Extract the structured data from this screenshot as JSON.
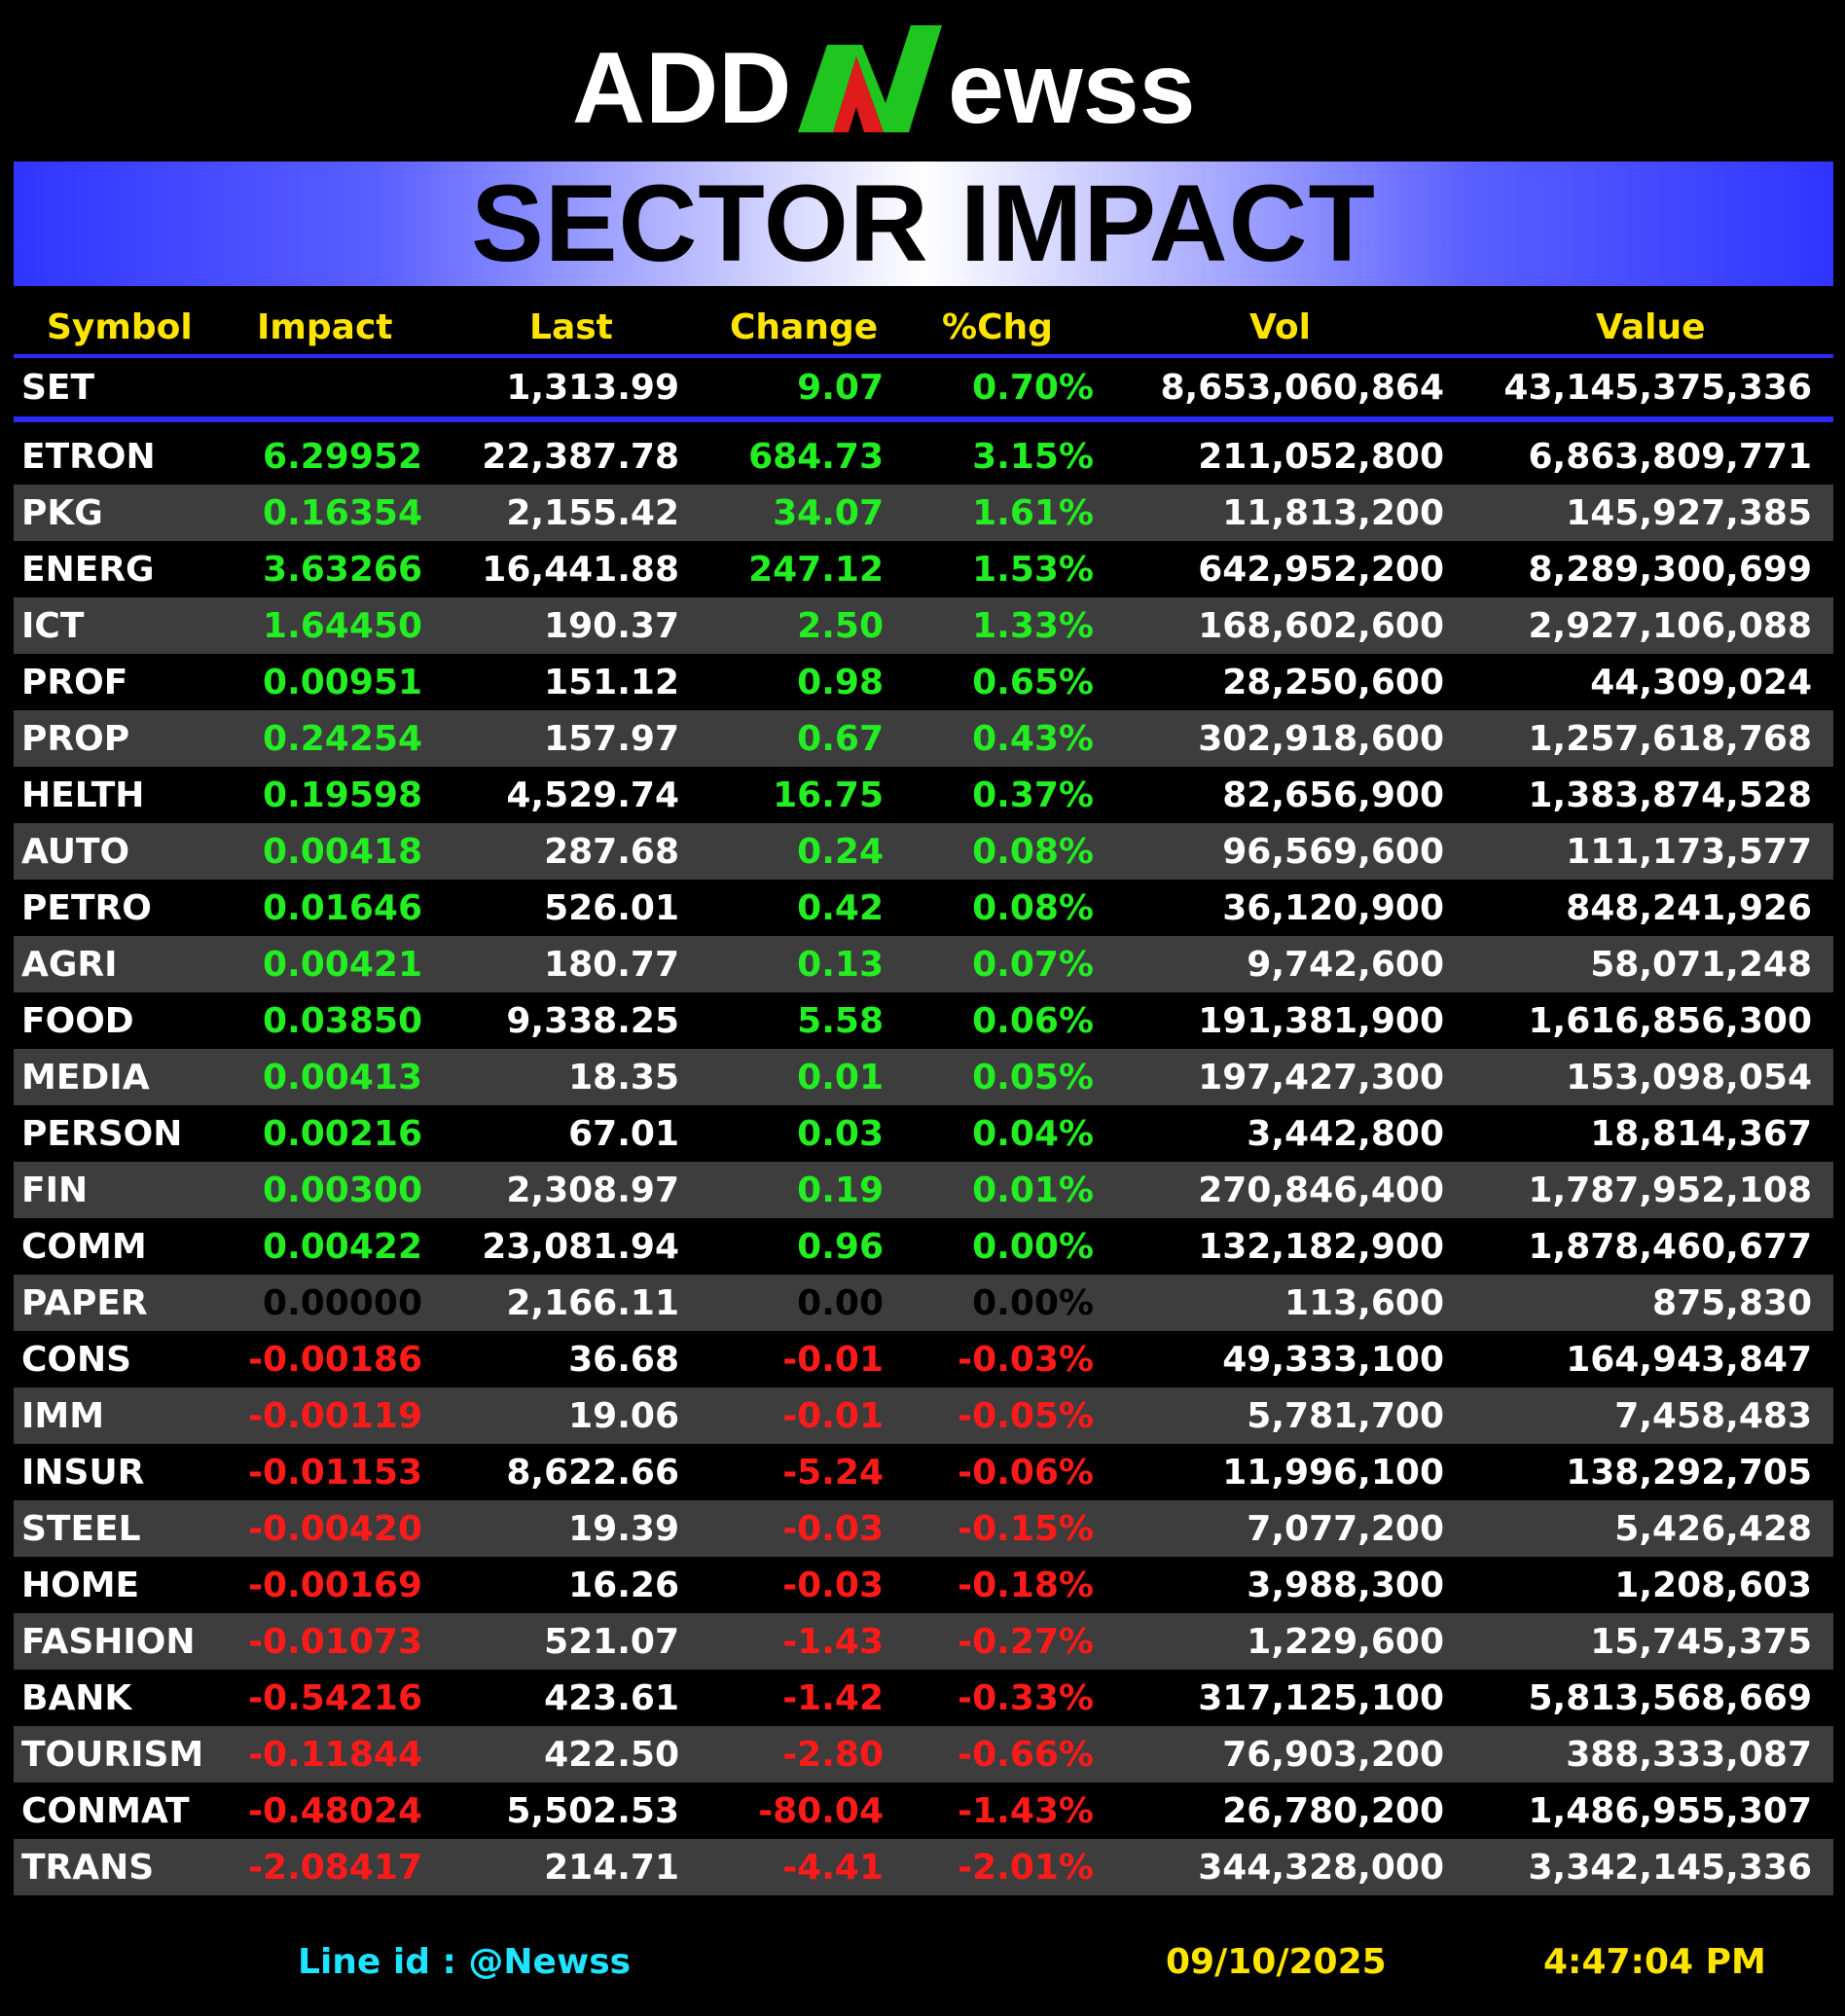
{
  "logo": {
    "text_left": "ADD",
    "text_mid": "N",
    "text_right": "ewss",
    "accent": "#1fc61f",
    "accent2": "#e01b1b"
  },
  "banner": {
    "title": "SECTOR IMPACT"
  },
  "headers": {
    "symbol": "Symbol",
    "impact": "Impact",
    "last": "Last",
    "change": "Change",
    "pct": "%Chg",
    "vol": "Vol",
    "value": "Value"
  },
  "set": {
    "symbol": "SET",
    "impact": "",
    "last": "1,313.99",
    "change": "9.07",
    "pct": "0.70%",
    "vol": "8,653,060,864",
    "value": "43,145,375,336",
    "dir": "pos"
  },
  "rows": [
    {
      "symbol": "ETRON",
      "impact": "6.29952",
      "last": "22,387.78",
      "change": "684.73",
      "pct": "3.15%",
      "vol": "211,052,800",
      "value": "6,863,809,771",
      "dir": "pos"
    },
    {
      "symbol": "PKG",
      "impact": "0.16354",
      "last": "2,155.42",
      "change": "34.07",
      "pct": "1.61%",
      "vol": "11,813,200",
      "value": "145,927,385",
      "dir": "pos"
    },
    {
      "symbol": "ENERG",
      "impact": "3.63266",
      "last": "16,441.88",
      "change": "247.12",
      "pct": "1.53%",
      "vol": "642,952,200",
      "value": "8,289,300,699",
      "dir": "pos"
    },
    {
      "symbol": "ICT",
      "impact": "1.64450",
      "last": "190.37",
      "change": "2.50",
      "pct": "1.33%",
      "vol": "168,602,600",
      "value": "2,927,106,088",
      "dir": "pos"
    },
    {
      "symbol": "PROF",
      "impact": "0.00951",
      "last": "151.12",
      "change": "0.98",
      "pct": "0.65%",
      "vol": "28,250,600",
      "value": "44,309,024",
      "dir": "pos"
    },
    {
      "symbol": "PROP",
      "impact": "0.24254",
      "last": "157.97",
      "change": "0.67",
      "pct": "0.43%",
      "vol": "302,918,600",
      "value": "1,257,618,768",
      "dir": "pos"
    },
    {
      "symbol": "HELTH",
      "impact": "0.19598",
      "last": "4,529.74",
      "change": "16.75",
      "pct": "0.37%",
      "vol": "82,656,900",
      "value": "1,383,874,528",
      "dir": "pos"
    },
    {
      "symbol": "AUTO",
      "impact": "0.00418",
      "last": "287.68",
      "change": "0.24",
      "pct": "0.08%",
      "vol": "96,569,600",
      "value": "111,173,577",
      "dir": "pos"
    },
    {
      "symbol": "PETRO",
      "impact": "0.01646",
      "last": "526.01",
      "change": "0.42",
      "pct": "0.08%",
      "vol": "36,120,900",
      "value": "848,241,926",
      "dir": "pos"
    },
    {
      "symbol": "AGRI",
      "impact": "0.00421",
      "last": "180.77",
      "change": "0.13",
      "pct": "0.07%",
      "vol": "9,742,600",
      "value": "58,071,248",
      "dir": "pos"
    },
    {
      "symbol": "FOOD",
      "impact": "0.03850",
      "last": "9,338.25",
      "change": "5.58",
      "pct": "0.06%",
      "vol": "191,381,900",
      "value": "1,616,856,300",
      "dir": "pos"
    },
    {
      "symbol": "MEDIA",
      "impact": "0.00413",
      "last": "18.35",
      "change": "0.01",
      "pct": "0.05%",
      "vol": "197,427,300",
      "value": "153,098,054",
      "dir": "pos"
    },
    {
      "symbol": "PERSON",
      "impact": "0.00216",
      "last": "67.01",
      "change": "0.03",
      "pct": "0.04%",
      "vol": "3,442,800",
      "value": "18,814,367",
      "dir": "pos"
    },
    {
      "symbol": "FIN",
      "impact": "0.00300",
      "last": "2,308.97",
      "change": "0.19",
      "pct": "0.01%",
      "vol": "270,846,400",
      "value": "1,787,952,108",
      "dir": "pos"
    },
    {
      "symbol": "COMM",
      "impact": "0.00422",
      "last": "23,081.94",
      "change": "0.96",
      "pct": "0.00%",
      "vol": "132,182,900",
      "value": "1,878,460,677",
      "dir": "pos"
    },
    {
      "symbol": "PAPER",
      "impact": "0.00000",
      "last": "2,166.11",
      "change": "0.00",
      "pct": "0.00%",
      "vol": "113,600",
      "value": "875,830",
      "dir": "zero"
    },
    {
      "symbol": "CONS",
      "impact": "-0.00186",
      "last": "36.68",
      "change": "-0.01",
      "pct": "-0.03%",
      "vol": "49,333,100",
      "value": "164,943,847",
      "dir": "neg"
    },
    {
      "symbol": "IMM",
      "impact": "-0.00119",
      "last": "19.06",
      "change": "-0.01",
      "pct": "-0.05%",
      "vol": "5,781,700",
      "value": "7,458,483",
      "dir": "neg"
    },
    {
      "symbol": "INSUR",
      "impact": "-0.01153",
      "last": "8,622.66",
      "change": "-5.24",
      "pct": "-0.06%",
      "vol": "11,996,100",
      "value": "138,292,705",
      "dir": "neg"
    },
    {
      "symbol": "STEEL",
      "impact": "-0.00420",
      "last": "19.39",
      "change": "-0.03",
      "pct": "-0.15%",
      "vol": "7,077,200",
      "value": "5,426,428",
      "dir": "neg"
    },
    {
      "symbol": "HOME",
      "impact": "-0.00169",
      "last": "16.26",
      "change": "-0.03",
      "pct": "-0.18%",
      "vol": "3,988,300",
      "value": "1,208,603",
      "dir": "neg"
    },
    {
      "symbol": "FASHION",
      "impact": "-0.01073",
      "last": "521.07",
      "change": "-1.43",
      "pct": "-0.27%",
      "vol": "1,229,600",
      "value": "15,745,375",
      "dir": "neg"
    },
    {
      "symbol": "BANK",
      "impact": "-0.54216",
      "last": "423.61",
      "change": "-1.42",
      "pct": "-0.33%",
      "vol": "317,125,100",
      "value": "5,813,568,669",
      "dir": "neg"
    },
    {
      "symbol": "TOURISM",
      "impact": "-0.11844",
      "last": "422.50",
      "change": "-2.80",
      "pct": "-0.66%",
      "vol": "76,903,200",
      "value": "388,333,087",
      "dir": "neg"
    },
    {
      "symbol": "CONMAT",
      "impact": "-0.48024",
      "last": "5,502.53",
      "change": "-80.04",
      "pct": "-1.43%",
      "vol": "26,780,200",
      "value": "1,486,955,307",
      "dir": "neg"
    },
    {
      "symbol": "TRANS",
      "impact": "-2.08417",
      "last": "214.71",
      "change": "-4.41",
      "pct": "-2.01%",
      "vol": "344,328,000",
      "value": "3,342,145,336",
      "dir": "neg"
    }
  ],
  "footer": {
    "line_id": "Line id  : @Newss",
    "date": "09/10/2025",
    "time": "4:47:04 PM"
  },
  "colors": {
    "positive": "#22ee22",
    "negative": "#ff1a1a",
    "header": "#ffe400",
    "divider": "#2b2bff",
    "line_id": "#1fe3ff"
  }
}
